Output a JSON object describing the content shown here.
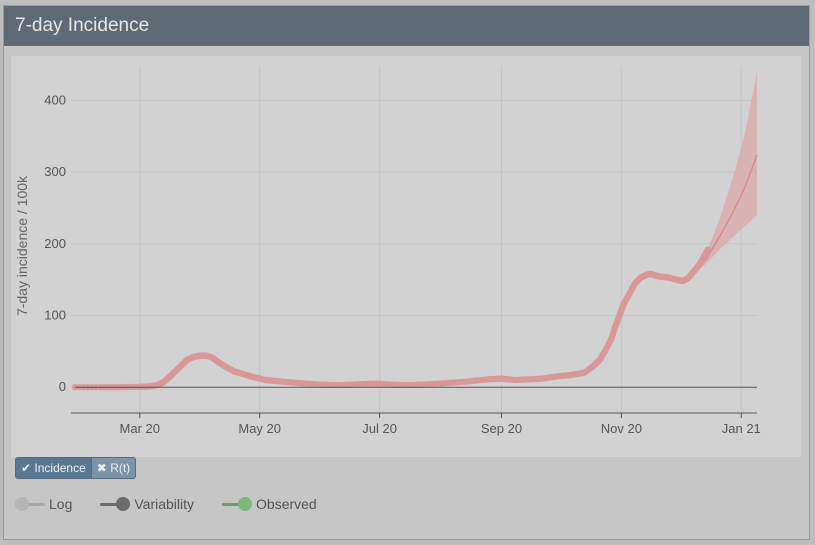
{
  "panel": {
    "title": "7-day Incidence"
  },
  "colors": {
    "header_bg": "#606a74",
    "observed": "#d99898",
    "forecast_line": "#d48c8c",
    "forecast_band": "#dba8a8",
    "active_button": "#5a7792"
  },
  "buttons": {
    "incidence_label": "Incidence",
    "rt_label": "R(t)",
    "incidence_icon": "check-icon",
    "rt_icon": "x-icon"
  },
  "toggles": [
    {
      "label": "Log",
      "state": "off"
    },
    {
      "label": "Variability",
      "state": "on"
    },
    {
      "label": "Observed",
      "state": "on"
    }
  ],
  "chart_data": {
    "type": "line",
    "title": "",
    "ylabel": "7-day incidence / 100k",
    "xlabel": "",
    "x_tick_labels": [
      "Mar 20",
      "May 20",
      "Jul 20",
      "Sep 20",
      "Nov 20",
      "Jan 21"
    ],
    "x_tick_dates": [
      "2020-03-01",
      "2020-05-01",
      "2020-07-01",
      "2020-09-01",
      "2020-11-01",
      "2021-01-01"
    ],
    "y_ticks": [
      0,
      100,
      200,
      300,
      400
    ],
    "xlim": [
      "2020-01-26",
      "2021-01-09"
    ],
    "ylim": [
      -36,
      448
    ],
    "grid": true,
    "series": [
      {
        "name": "Observed",
        "style": "markers",
        "points": [
          [
            "2020-01-28",
            0
          ],
          [
            "2020-02-10",
            0
          ],
          [
            "2020-02-20",
            0
          ],
          [
            "2020-03-01",
            0.5
          ],
          [
            "2020-03-06",
            1
          ],
          [
            "2020-03-10",
            3
          ],
          [
            "2020-03-13",
            7
          ],
          [
            "2020-03-16",
            14
          ],
          [
            "2020-03-19",
            22
          ],
          [
            "2020-03-22",
            30
          ],
          [
            "2020-03-25",
            38
          ],
          [
            "2020-03-28",
            42
          ],
          [
            "2020-04-01",
            44
          ],
          [
            "2020-04-04",
            44
          ],
          [
            "2020-04-07",
            41
          ],
          [
            "2020-04-10",
            35
          ],
          [
            "2020-04-14",
            28
          ],
          [
            "2020-04-18",
            22
          ],
          [
            "2020-04-23",
            18
          ],
          [
            "2020-04-28",
            14
          ],
          [
            "2020-05-04",
            10
          ],
          [
            "2020-05-12",
            8
          ],
          [
            "2020-05-20",
            6
          ],
          [
            "2020-05-30",
            4
          ],
          [
            "2020-06-10",
            3
          ],
          [
            "2020-06-20",
            4
          ],
          [
            "2020-06-28",
            5
          ],
          [
            "2020-07-05",
            4
          ],
          [
            "2020-07-15",
            3
          ],
          [
            "2020-07-25",
            4
          ],
          [
            "2020-08-05",
            6
          ],
          [
            "2020-08-15",
            8
          ],
          [
            "2020-08-25",
            11
          ],
          [
            "2020-09-01",
            12
          ],
          [
            "2020-09-08",
            10
          ],
          [
            "2020-09-15",
            11
          ],
          [
            "2020-09-22",
            12
          ],
          [
            "2020-09-29",
            15
          ],
          [
            "2020-10-06",
            17
          ],
          [
            "2020-10-13",
            20
          ],
          [
            "2020-10-18",
            30
          ],
          [
            "2020-10-21",
            38
          ],
          [
            "2020-10-24",
            52
          ],
          [
            "2020-10-27",
            68
          ],
          [
            "2020-10-29",
            85
          ],
          [
            "2020-10-31",
            100
          ],
          [
            "2020-11-02",
            115
          ],
          [
            "2020-11-04",
            125
          ],
          [
            "2020-11-06",
            135
          ],
          [
            "2020-11-08",
            145
          ],
          [
            "2020-11-11",
            153
          ],
          [
            "2020-11-14",
            157
          ],
          [
            "2020-11-16",
            158
          ],
          [
            "2020-11-18",
            156
          ],
          [
            "2020-11-21",
            154
          ],
          [
            "2020-11-25",
            153
          ],
          [
            "2020-11-29",
            150
          ],
          [
            "2020-12-02",
            148
          ],
          [
            "2020-12-05",
            152
          ],
          [
            "2020-12-08",
            162
          ],
          [
            "2020-12-11",
            172
          ],
          [
            "2020-12-13",
            182
          ],
          [
            "2020-12-15",
            192
          ]
        ]
      },
      {
        "name": "Forecast",
        "style": "line",
        "points": [
          [
            "2020-12-04",
            150
          ],
          [
            "2020-12-14",
            178
          ],
          [
            "2020-12-21",
            210
          ],
          [
            "2020-12-28",
            245
          ],
          [
            "2021-01-03",
            280
          ],
          [
            "2021-01-09",
            324
          ]
        ]
      },
      {
        "name": "Forecast range",
        "style": "band",
        "upper": [
          [
            "2020-12-04",
            152
          ],
          [
            "2020-12-14",
            185
          ],
          [
            "2020-12-21",
            235
          ],
          [
            "2020-12-28",
            295
          ],
          [
            "2021-01-03",
            355
          ],
          [
            "2021-01-09",
            440
          ]
        ],
        "lower": [
          [
            "2020-12-04",
            148
          ],
          [
            "2020-12-14",
            172
          ],
          [
            "2020-12-21",
            192
          ],
          [
            "2020-12-28",
            210
          ],
          [
            "2021-01-03",
            225
          ],
          [
            "2021-01-09",
            240
          ]
        ]
      }
    ]
  }
}
